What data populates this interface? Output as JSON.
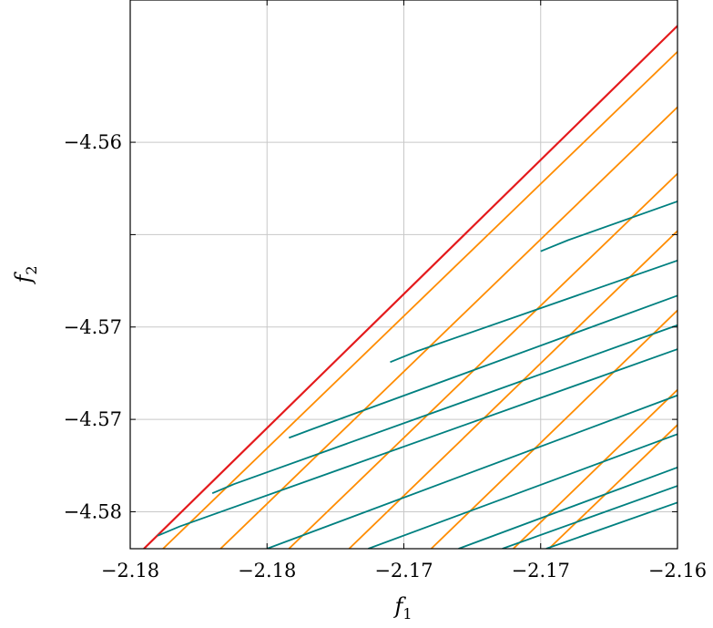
{
  "chart_data": {
    "type": "line",
    "title": "",
    "xlabel": {
      "base": "f",
      "sub": "1"
    },
    "ylabel": {
      "base": "f",
      "sub": "2"
    },
    "xlim": [
      -2.18,
      -2.16
    ],
    "ylim": [
      -4.582,
      -4.5523
    ],
    "grid": true,
    "legend": "none",
    "x_tick_values": [
      -2.18,
      -2.175,
      -2.17,
      -2.165,
      -2.16
    ],
    "x_tick_labels": [
      "−2.18",
      "−2.18",
      "−2.17",
      "−2.17",
      "−2.16"
    ],
    "y_tick_values": [
      -4.58,
      -4.575,
      -4.57,
      -4.565,
      -4.56
    ],
    "y_tick_labels": [
      "−4.58",
      "−4.57",
      "−4.57",
      "−4.56"
    ],
    "y_tick_labels_at": [
      -4.58,
      -4.575,
      -4.57,
      -4.56
    ],
    "colors": {
      "red": "#e41a1c",
      "orange": "#ff8c00",
      "teal": "#008080",
      "grid": "#c8c8c8"
    },
    "series": [
      {
        "color": "red",
        "points": [
          [
            -2.1795,
            -4.582
          ],
          [
            -2.16,
            -4.5537
          ]
        ]
      },
      {
        "color": "orange",
        "points": [
          [
            -2.1788,
            -4.582
          ],
          [
            -2.16,
            -4.5551
          ]
        ]
      },
      {
        "color": "orange",
        "points": [
          [
            -2.1767,
            -4.582
          ],
          [
            -2.16,
            -4.5581
          ]
        ]
      },
      {
        "color": "orange",
        "points": [
          [
            -2.1742,
            -4.582
          ],
          [
            -2.16,
            -4.5617
          ]
        ]
      },
      {
        "color": "orange",
        "points": [
          [
            -2.172,
            -4.582
          ],
          [
            -2.16,
            -4.5648
          ]
        ]
      },
      {
        "color": "orange",
        "points": [
          [
            -2.169,
            -4.582
          ],
          [
            -2.16,
            -4.5691
          ]
        ]
      },
      {
        "color": "orange",
        "points": [
          [
            -2.166,
            -4.582
          ],
          [
            -2.16,
            -4.5734
          ]
        ]
      },
      {
        "color": "orange",
        "points": [
          [
            -2.1647,
            -4.582
          ],
          [
            -2.16,
            -4.5753
          ]
        ]
      },
      {
        "color": "teal",
        "points": [
          [
            -2.179,
            -4.5813
          ],
          [
            -2.1782,
            -4.5808
          ],
          [
            -2.16,
            -4.5712
          ]
        ]
      },
      {
        "color": "teal",
        "points": [
          [
            -2.177,
            -4.579
          ],
          [
            -2.1762,
            -4.5785
          ],
          [
            -2.16,
            -4.5699
          ]
        ]
      },
      {
        "color": "teal",
        "points": [
          [
            -2.1742,
            -4.576
          ],
          [
            -2.1733,
            -4.5755
          ],
          [
            -2.16,
            -4.5683
          ]
        ]
      },
      {
        "color": "teal",
        "points": [
          [
            -2.1705,
            -4.5719
          ],
          [
            -2.1695,
            -4.5713
          ],
          [
            -2.16,
            -4.5664
          ]
        ]
      },
      {
        "color": "teal",
        "points": [
          [
            -2.165,
            -4.5659
          ],
          [
            -2.164,
            -4.5653
          ],
          [
            -2.16,
            -4.5632
          ]
        ]
      },
      {
        "color": "teal",
        "points": [
          [
            -2.175,
            -4.582
          ],
          [
            -2.16,
            -4.5737
          ]
        ]
      },
      {
        "color": "teal",
        "points": [
          [
            -2.1713,
            -4.582
          ],
          [
            -2.16,
            -4.5758
          ]
        ]
      },
      {
        "color": "teal",
        "points": [
          [
            -2.168,
            -4.582
          ],
          [
            -2.16,
            -4.5776
          ]
        ]
      },
      {
        "color": "teal",
        "points": [
          [
            -2.1664,
            -4.582
          ],
          [
            -2.16,
            -4.5786
          ]
        ]
      },
      {
        "color": "teal",
        "points": [
          [
            -2.1648,
            -4.582
          ],
          [
            -2.16,
            -4.5795
          ]
        ]
      }
    ]
  }
}
